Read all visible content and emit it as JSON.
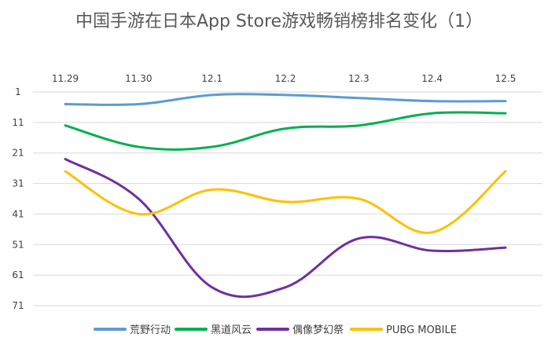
{
  "chart_data": {
    "type": "line",
    "title": "中国手游在日本App Store游戏畅销榜排名变化（1）",
    "xlabel": "",
    "ylabel": "",
    "categories": [
      "11.29",
      "11.30",
      "12.1",
      "12.2",
      "12.3",
      "12.4",
      "12.5"
    ],
    "y_axis": {
      "inverted": true,
      "range": [
        1,
        71
      ],
      "ticks": [
        1,
        11,
        21,
        31,
        41,
        51,
        61,
        71
      ]
    },
    "x_axis_position": "top",
    "grid": true,
    "legend_position": "bottom",
    "series": [
      {
        "name": "荒野行动",
        "color": "#5B9BD5",
        "values": [
          5,
          5,
          2,
          2,
          3,
          4,
          4
        ]
      },
      {
        "name": "黑道风云",
        "color": "#00B050",
        "values": [
          12,
          19,
          19,
          13,
          12,
          8,
          8
        ]
      },
      {
        "name": "偶像梦幻祭",
        "color": "#7030A0",
        "values": [
          23,
          36,
          65,
          65,
          49,
          53,
          52
        ]
      },
      {
        "name": "PUBG MOBILE",
        "color": "#FFC000",
        "values": [
          27,
          41,
          33,
          37,
          36,
          47,
          27
        ]
      }
    ]
  }
}
